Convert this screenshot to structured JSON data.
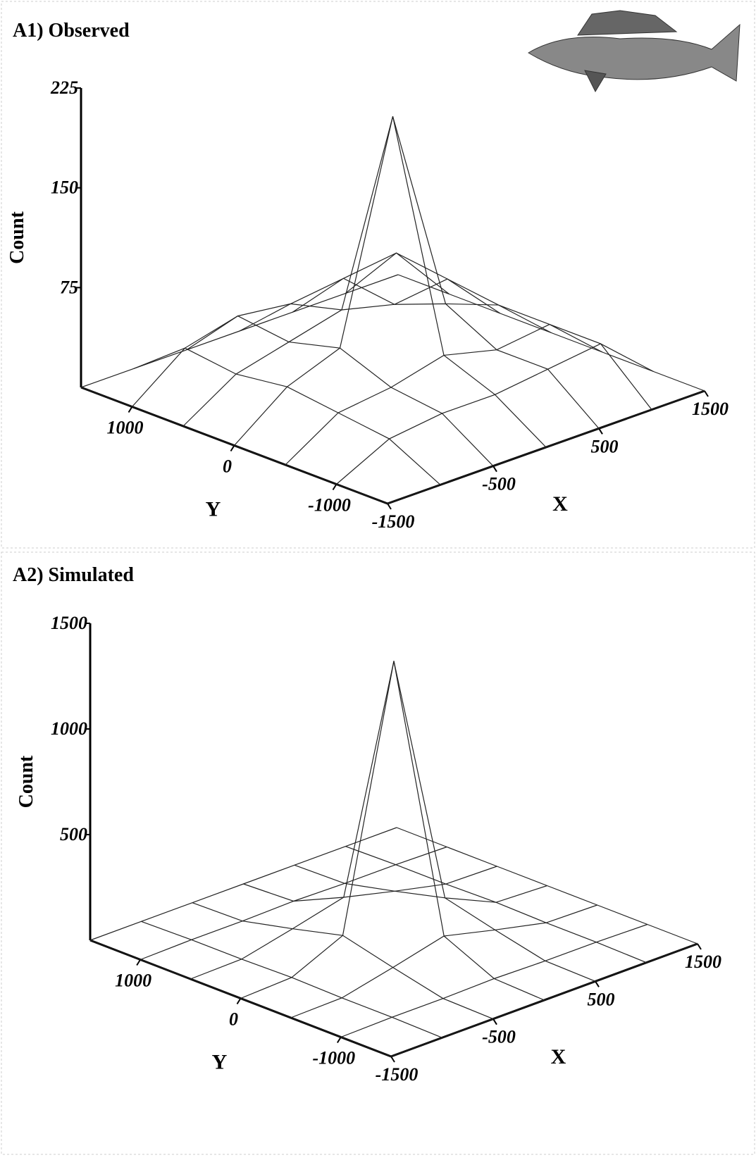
{
  "chart_data": [
    {
      "type": "surface",
      "title": "A1) Observed",
      "xlabel": "X",
      "ylabel": "Y",
      "zlabel": "Count",
      "xlim": [
        -1500,
        1500
      ],
      "ylim": [
        -1500,
        1500
      ],
      "zlim": [
        0,
        225
      ],
      "xticks": [
        -1500,
        -500,
        500,
        1500
      ],
      "yticks": [
        -1000,
        0,
        1000
      ],
      "zticks": [
        75,
        150,
        225
      ],
      "x": [
        -1500,
        -1000,
        -500,
        0,
        500,
        1000,
        1500
      ],
      "y": [
        -1500,
        -1000,
        -500,
        0,
        500,
        1000,
        1500
      ],
      "z": [
        [
          0,
          0,
          0,
          0,
          0,
          0,
          0
        ],
        [
          0,
          20,
          25,
          25,
          30,
          35,
          0
        ],
        [
          0,
          25,
          30,
          40,
          30,
          35,
          0
        ],
        [
          0,
          30,
          45,
          205,
          50,
          35,
          0
        ],
        [
          0,
          25,
          35,
          45,
          35,
          40,
          0
        ],
        [
          0,
          30,
          40,
          35,
          40,
          45,
          0
        ],
        [
          0,
          0,
          0,
          0,
          0,
          0,
          0
        ]
      ],
      "color": "#222222"
    },
    {
      "type": "surface",
      "title": "A2) Simulated",
      "xlabel": "X",
      "ylabel": "Y",
      "zlabel": "Count",
      "xlim": [
        -1500,
        1500
      ],
      "ylim": [
        -1500,
        1500
      ],
      "zlim": [
        0,
        1500
      ],
      "xticks": [
        -1500,
        -500,
        500,
        1500
      ],
      "yticks": [
        -1000,
        0,
        1000
      ],
      "zticks": [
        500,
        1000,
        1500
      ],
      "x": [
        -1500,
        -1000,
        -500,
        0,
        500,
        1000,
        1500
      ],
      "y": [
        -1500,
        -1000,
        -500,
        0,
        500,
        1000,
        1500
      ],
      "z": [
        [
          0,
          0,
          0,
          0,
          0,
          0,
          0
        ],
        [
          0,
          5,
          5,
          10,
          5,
          5,
          0
        ],
        [
          0,
          5,
          60,
          120,
          60,
          5,
          0
        ],
        [
          0,
          10,
          120,
          1330,
          120,
          10,
          0
        ],
        [
          0,
          5,
          60,
          120,
          60,
          5,
          0
        ],
        [
          0,
          5,
          5,
          10,
          5,
          5,
          0
        ],
        [
          0,
          0,
          0,
          0,
          0,
          0,
          0
        ]
      ],
      "color": "#222222"
    }
  ]
}
